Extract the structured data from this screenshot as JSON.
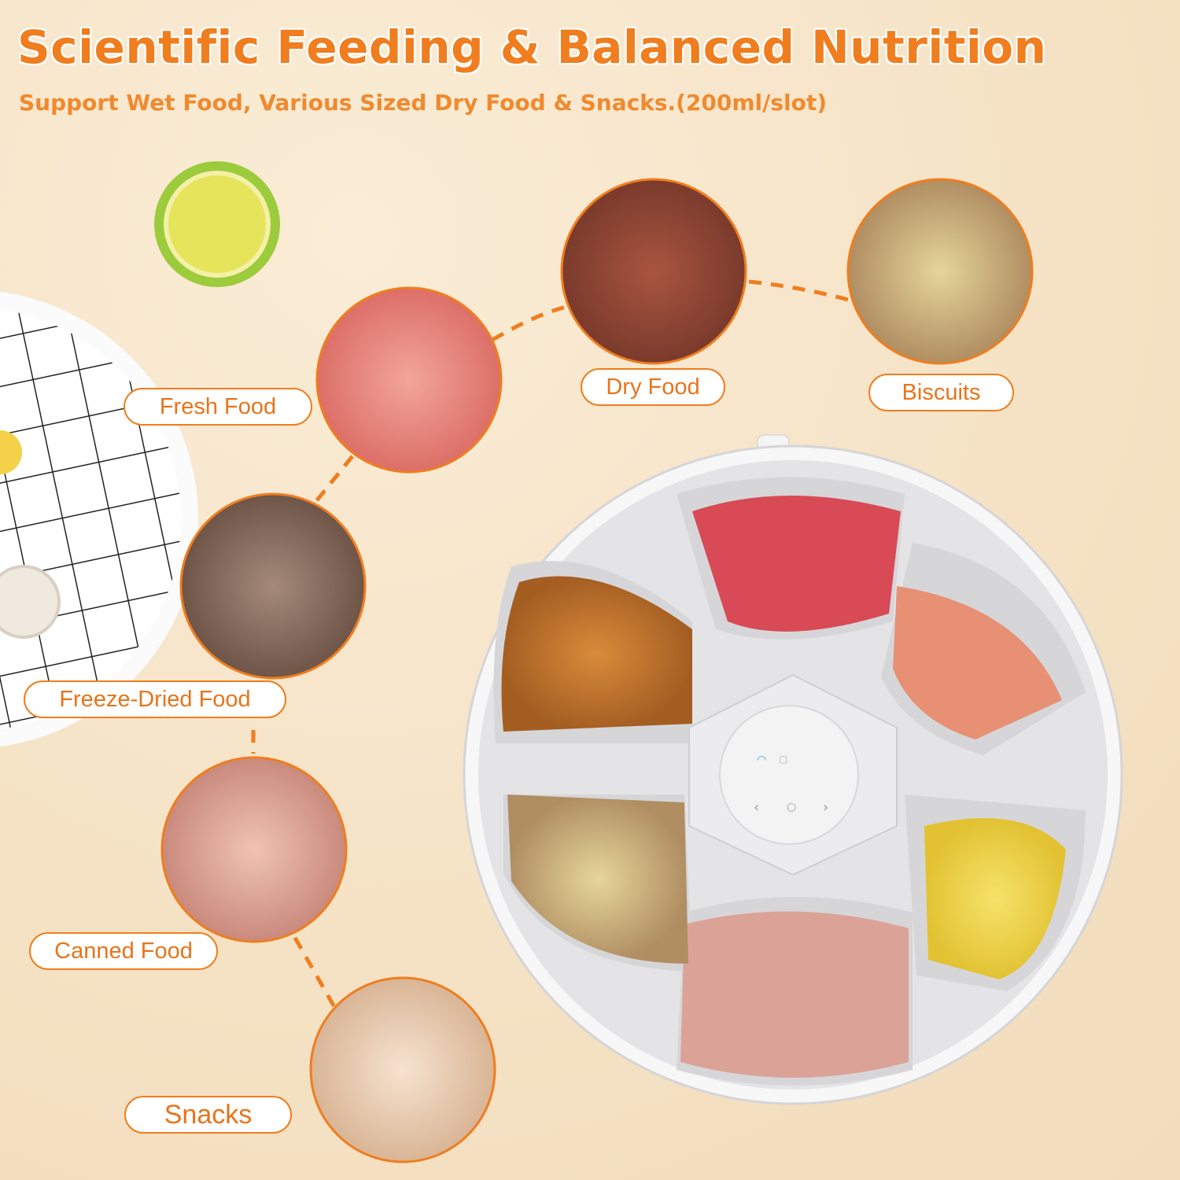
{
  "header": {
    "title": "Scientific Feeding & Balanced Nutrition",
    "subtitle": "Support Wet Food, Various Sized Dry Food & Snacks.(200ml/slot)"
  },
  "food_types": [
    {
      "label": "Fresh Food",
      "icon": "fresh-meat-image"
    },
    {
      "label": "Dry Food",
      "icon": "kibble-image"
    },
    {
      "label": "Biscuits",
      "icon": "bone-biscuit-image"
    },
    {
      "label": "Freeze-Dried Food",
      "icon": "freeze-dried-cubes-image"
    },
    {
      "label": "Canned Food",
      "icon": "canned-meat-image"
    },
    {
      "label": "Snacks",
      "icon": "shredded-chicken-image"
    }
  ],
  "colors": {
    "accent": "#f07d1e",
    "background": "#f6e5ca",
    "device": "#e4e4e6"
  },
  "device": {
    "slots": 6,
    "controls": [
      "wifi-icon",
      "lock-icon",
      "chevron-left-icon",
      "power-circle-icon",
      "chevron-right-icon"
    ]
  }
}
